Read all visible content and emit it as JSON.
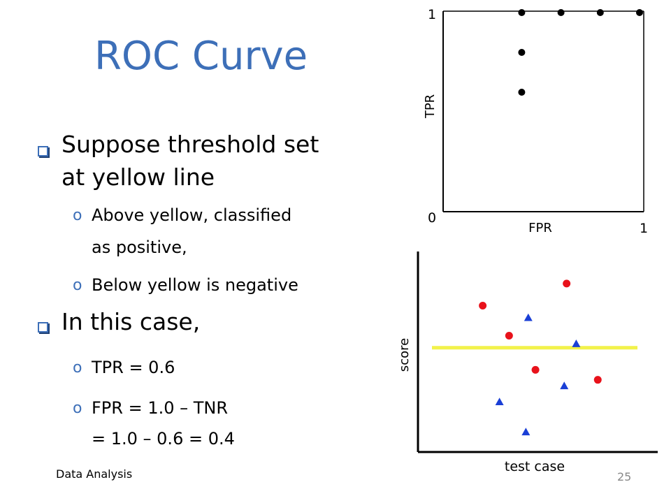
{
  "slide": {
    "title": "ROC Curve",
    "bullets": [
      {
        "text_line1": "Suppose threshold set",
        "text_line2": "at yellow line",
        "sub": [
          {
            "line1": "Above yellow, classified",
            "line2": "as positive,"
          },
          {
            "line1": "Below yellow is negative",
            "line2": ""
          }
        ]
      },
      {
        "text_line1": "In this case,",
        "sub": [
          {
            "line1": "TPR = 0.6",
            "line2": ""
          },
          {
            "line1": "FPR = 1.0 – TNR",
            "line2": "= 1.0 – 0.6 = 0.4"
          }
        ]
      }
    ],
    "sub_marker": "o",
    "footer_left": "Data Analysis",
    "page_number": "25"
  },
  "colors": {
    "title": "#3d6fb8",
    "threshold_line": "#f2f24a",
    "positive_point": "#e8121b",
    "negative_point": "#1a3fd6",
    "roc_point": "#000000"
  },
  "chart_data": [
    {
      "type": "scatter",
      "xlabel": "FPR",
      "ylabel": "TPR",
      "xlim": [
        0,
        1
      ],
      "ylim": [
        0,
        1
      ],
      "x_tick_labels": [
        "1"
      ],
      "y_tick_labels": [
        "1"
      ],
      "origin_label": "0",
      "grid": false,
      "points": [
        {
          "x": 0.4,
          "y": 0.6
        },
        {
          "x": 0.4,
          "y": 0.8
        },
        {
          "x": 0.4,
          "y": 1.0
        },
        {
          "x": 0.6,
          "y": 1.0
        },
        {
          "x": 0.8,
          "y": 1.0
        },
        {
          "x": 1.0,
          "y": 1.0
        }
      ]
    },
    {
      "type": "scatter",
      "xlabel": "test case",
      "ylabel": "score",
      "xlim": [
        0,
        10
      ],
      "ylim": [
        0,
        10
      ],
      "threshold_score": 5.2,
      "grid": false,
      "series": [
        {
          "marker": "circle",
          "points": [
            {
              "x": 2.7,
              "y": 7.3
            },
            {
              "x": 3.8,
              "y": 5.8
            },
            {
              "x": 4.9,
              "y": 4.1
            },
            {
              "x": 6.2,
              "y": 8.4
            },
            {
              "x": 7.5,
              "y": 3.6
            }
          ]
        },
        {
          "marker": "triangle",
          "points": [
            {
              "x": 4.6,
              "y": 6.7
            },
            {
              "x": 6.6,
              "y": 5.4
            },
            {
              "x": 6.1,
              "y": 3.3
            },
            {
              "x": 3.4,
              "y": 2.5
            },
            {
              "x": 4.5,
              "y": 1.0
            }
          ]
        }
      ]
    }
  ]
}
